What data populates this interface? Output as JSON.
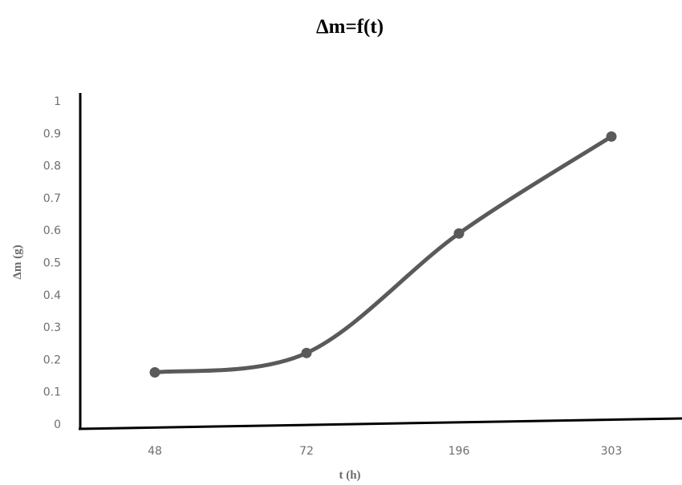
{
  "chart_data": {
    "type": "line",
    "title": "Δm=f(t)",
    "xlabel": "t (h)",
    "ylabel": "Δm (g)",
    "categories": [
      "48",
      "72",
      "196",
      "303"
    ],
    "values": [
      0.16,
      0.22,
      0.59,
      0.89
    ],
    "ylim": [
      0,
      1
    ],
    "yticks": [
      "0",
      "0.1",
      "0.2",
      "0.3",
      "0.4",
      "0.5",
      "0.6",
      "0.7",
      "0.8",
      "0.9",
      "1"
    ],
    "grid": false,
    "legend": "none",
    "line_color": "#5a5a5a",
    "axis_color": "#000000"
  }
}
